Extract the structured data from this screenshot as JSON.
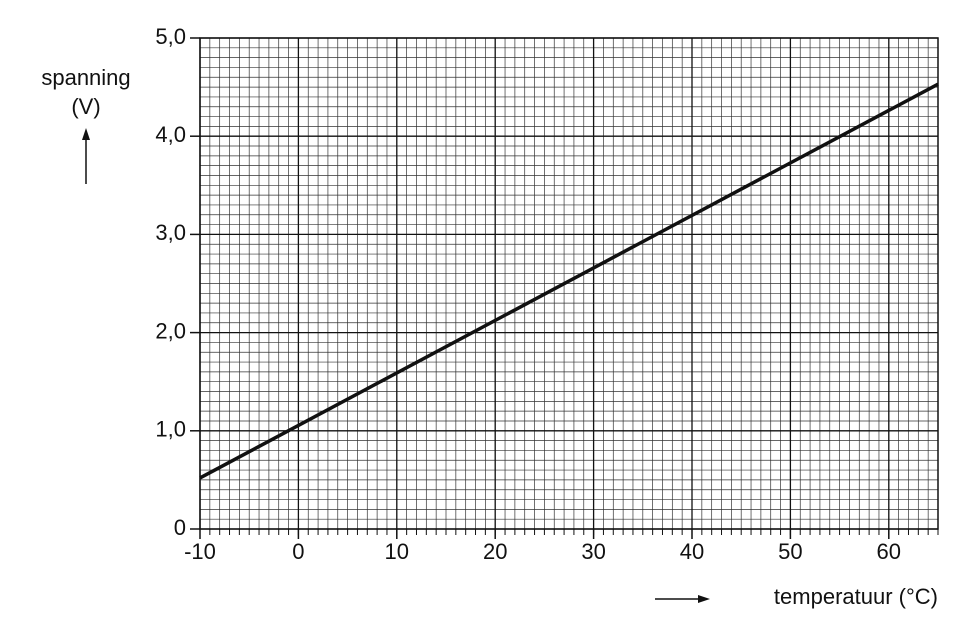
{
  "chart_data": {
    "type": "line",
    "y_label": [
      "spanning",
      "(V)"
    ],
    "x_label": "temperatuur (°C)",
    "x": [
      -10,
      65
    ],
    "series": [
      {
        "color": "#111111",
        "values": [
          0.52,
          4.53
        ]
      }
    ],
    "xlim": [
      -10,
      65
    ],
    "xticks": [
      -10,
      0,
      10,
      20,
      30,
      40,
      50,
      60
    ],
    "ylim": [
      0,
      5
    ],
    "yticks": [
      0,
      {
        "value": 1,
        "label": "1,0"
      },
      {
        "value": 2,
        "label": "2,0"
      },
      {
        "value": 3,
        "label": "3,0"
      },
      {
        "value": 4,
        "label": "4,0"
      },
      {
        "value": 5,
        "label": "5,0"
      }
    ],
    "grid": true
  }
}
